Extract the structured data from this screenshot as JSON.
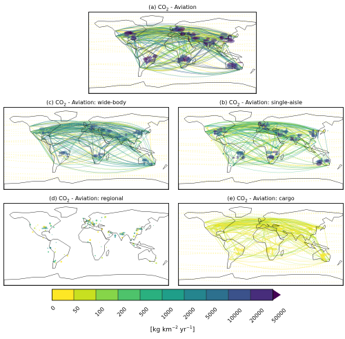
{
  "figure": {
    "panels": [
      {
        "id": "a",
        "title_prefix": "(a) CO",
        "title_sub": "2",
        "title_suffix": " - Aviation",
        "style": "total"
      },
      {
        "id": "c",
        "title_prefix": "(c) CO",
        "title_sub": "2",
        "title_suffix": " - Aviation: wide-body",
        "style": "widebody"
      },
      {
        "id": "b",
        "title_prefix": "(b) CO",
        "title_sub": "2",
        "title_suffix": " - Aviation: single-aisle",
        "style": "single"
      },
      {
        "id": "d",
        "title_prefix": "(d) CO",
        "title_sub": "2",
        "title_suffix": " - Aviation: regional",
        "style": "regional"
      },
      {
        "id": "e",
        "title_prefix": "(e) CO",
        "title_sub": "2",
        "title_suffix": " - Aviation: cargo",
        "style": "cargo"
      }
    ],
    "colorbar": {
      "ticks": [
        "0",
        "50",
        "100",
        "200",
        "500",
        "1000",
        "2000",
        "5000",
        "10000",
        "20000",
        "50000"
      ],
      "colors": [
        "#fde725",
        "#c8e020",
        "#86d549",
        "#4ec36b",
        "#2ab07f",
        "#1f9e89",
        "#25858e",
        "#2d708e",
        "#3b528b",
        "#472d7b"
      ],
      "extend": "max",
      "extend_color": "#440154",
      "units_prefix": "[kg km",
      "units_sup1": "−2",
      "units_mid": " yr",
      "units_sup2": "−1",
      "units_suffix": "]"
    }
  }
}
